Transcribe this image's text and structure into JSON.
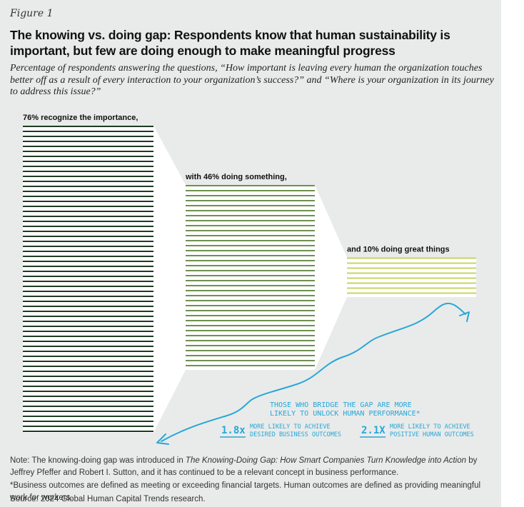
{
  "figure_label": "Figure 1",
  "title": "The knowing vs. doing gap: Respondents know that human sustainability is important, but few are doing enough to make meaningful progress",
  "subtitle": "Percentage of respondents answering the questions, “How important is leaving every human the organization touches better off as a result of every interaction to your organization’s success?” and “Where is your organization in its journey to address this issue?”",
  "chart_data": {
    "type": "bar",
    "categories": [
      "recognize the importance",
      "doing something",
      "doing great things"
    ],
    "values": [
      76,
      46,
      10
    ],
    "unit": "%",
    "bar_labels": [
      "76% recognize the importance,",
      "with 46% doing something,",
      "and 10% doing great things"
    ],
    "colors": [
      "#1f3a24",
      "#6f9150",
      "#c6d466"
    ]
  },
  "callout": {
    "headline_line1": "THOSE WHO BRIDGE THE GAP ARE MORE",
    "headline_line2": "LIKELY TO UNLOCK HUMAN PERFORMANCE*",
    "stat1_value": "1.8x",
    "stat1_line1": "MORE LIKELY TO ACHIEVE",
    "stat1_line2": "DESIRED BUSINESS OUTCOMES",
    "stat2_value": "2.1X",
    "stat2_line1": "MORE LIKELY TO ACHIEVE",
    "stat2_line2": "POSITIVE HUMAN OUTCOMES",
    "color": "#27a7d8"
  },
  "notes": {
    "note_prefix": "Note: The knowing-doing gap was introduced in ",
    "note_book": "The Knowing-Doing Gap: How Smart Companies Turn Knowledge into Action",
    "note_suffix": " by Jeffrey Pfeffer and Robert I. Sutton, and it has continued to be a relevant concept in business performance.",
    "outcomes": "*Business outcomes are defined as meeting or exceeding financial targets. Human outcomes are defined as providing meaningful work for workers.",
    "source": "Source: 2024 Global Human Capital Trends research."
  }
}
